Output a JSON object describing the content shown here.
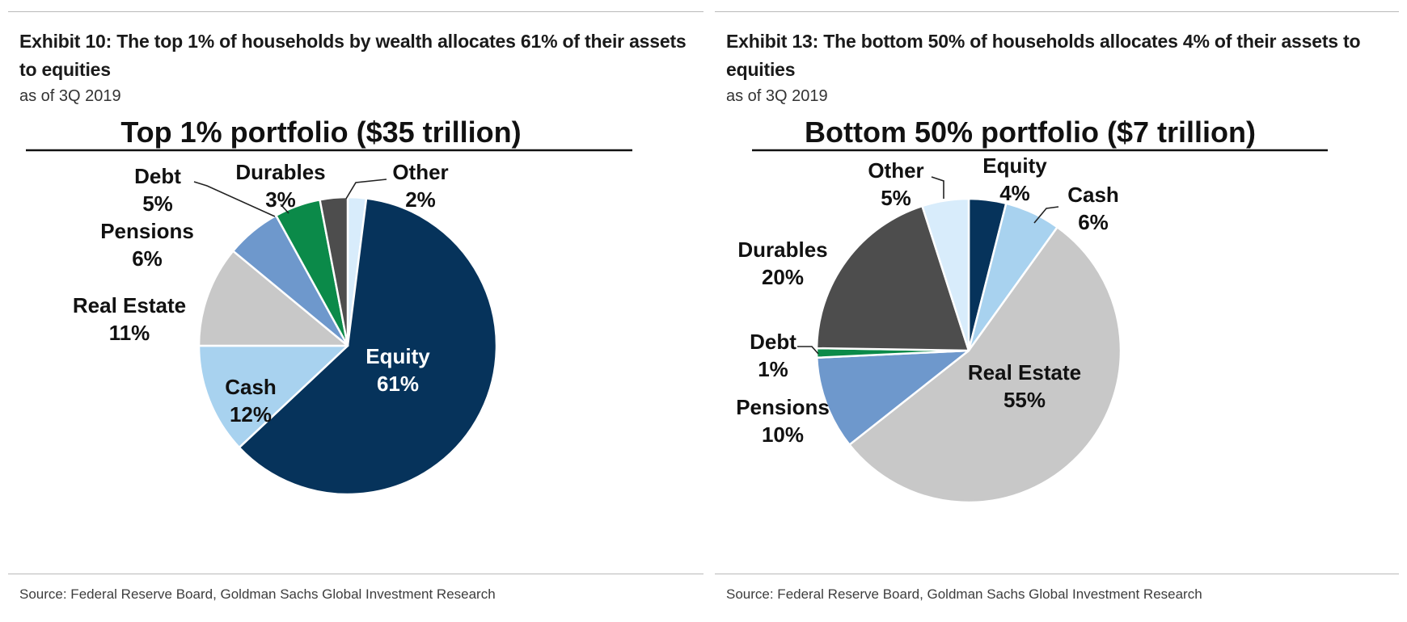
{
  "exhibits": [
    {
      "title": "Exhibit 10: The top 1% of households by wealth allocates 61% of their assets to equities",
      "subtitle": "as of 3Q 2019",
      "source": "Source: Federal Reserve Board, Goldman Sachs Global Investment Research"
    },
    {
      "title": "Exhibit 13: The bottom 50% of households allocates 4% of their assets to equities",
      "subtitle": "as of 3Q 2019",
      "source": "Source: Federal Reserve Board, Goldman Sachs Global Investment Research"
    }
  ],
  "chart_data": [
    {
      "type": "pie",
      "title": "Top 1% portfolio ($35 trillion)",
      "slices": [
        {
          "name": "Equity",
          "value": 61,
          "label": "61%",
          "color": "#06335b"
        },
        {
          "name": "Cash",
          "value": 12,
          "label": "12%",
          "color": "#a8d2ef"
        },
        {
          "name": "Real Estate",
          "value": 11,
          "label": "11%",
          "color": "#c8c8c8"
        },
        {
          "name": "Pensions",
          "value": 6,
          "label": "6%",
          "color": "#6e98cc"
        },
        {
          "name": "Debt",
          "value": 5,
          "label": "5%",
          "color": "#0b8a49"
        },
        {
          "name": "Durables",
          "value": 3,
          "label": "3%",
          "color": "#4d4d4d"
        },
        {
          "name": "Other",
          "value": 2,
          "label": "2%",
          "color": "#d8ecfb"
        }
      ]
    },
    {
      "type": "pie",
      "title": "Bottom 50% portfolio ($7 trillion)",
      "slices": [
        {
          "name": "Equity",
          "value": 4,
          "label": "4%",
          "color": "#06335b"
        },
        {
          "name": "Cash",
          "value": 6,
          "label": "6%",
          "color": "#a8d2ef"
        },
        {
          "name": "Real Estate",
          "value": 55,
          "label": "55%",
          "color": "#c8c8c8"
        },
        {
          "name": "Pensions",
          "value": 10,
          "label": "10%",
          "color": "#6e98cc"
        },
        {
          "name": "Debt",
          "value": 1,
          "label": "1%",
          "color": "#0b8a49"
        },
        {
          "name": "Durables",
          "value": 20,
          "label": "20%",
          "color": "#4d4d4d"
        },
        {
          "name": "Other",
          "value": 5,
          "label": "5%",
          "color": "#d8ecfb"
        }
      ]
    }
  ]
}
